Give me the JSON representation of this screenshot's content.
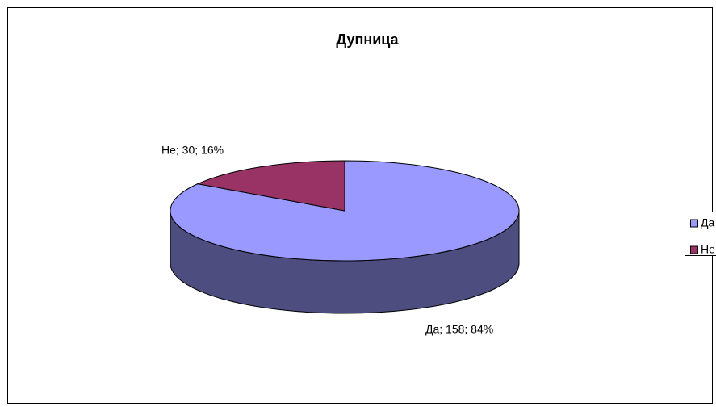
{
  "chart_data": {
    "type": "pie",
    "title": "Дупница",
    "categories": [
      "Да",
      "Не"
    ],
    "values": [
      158,
      30
    ],
    "value_labels": [
      "Да; 158; 84%",
      "Не; 30; 16%"
    ],
    "colors": [
      "#9999ff",
      "#993366"
    ],
    "legend": "right"
  }
}
